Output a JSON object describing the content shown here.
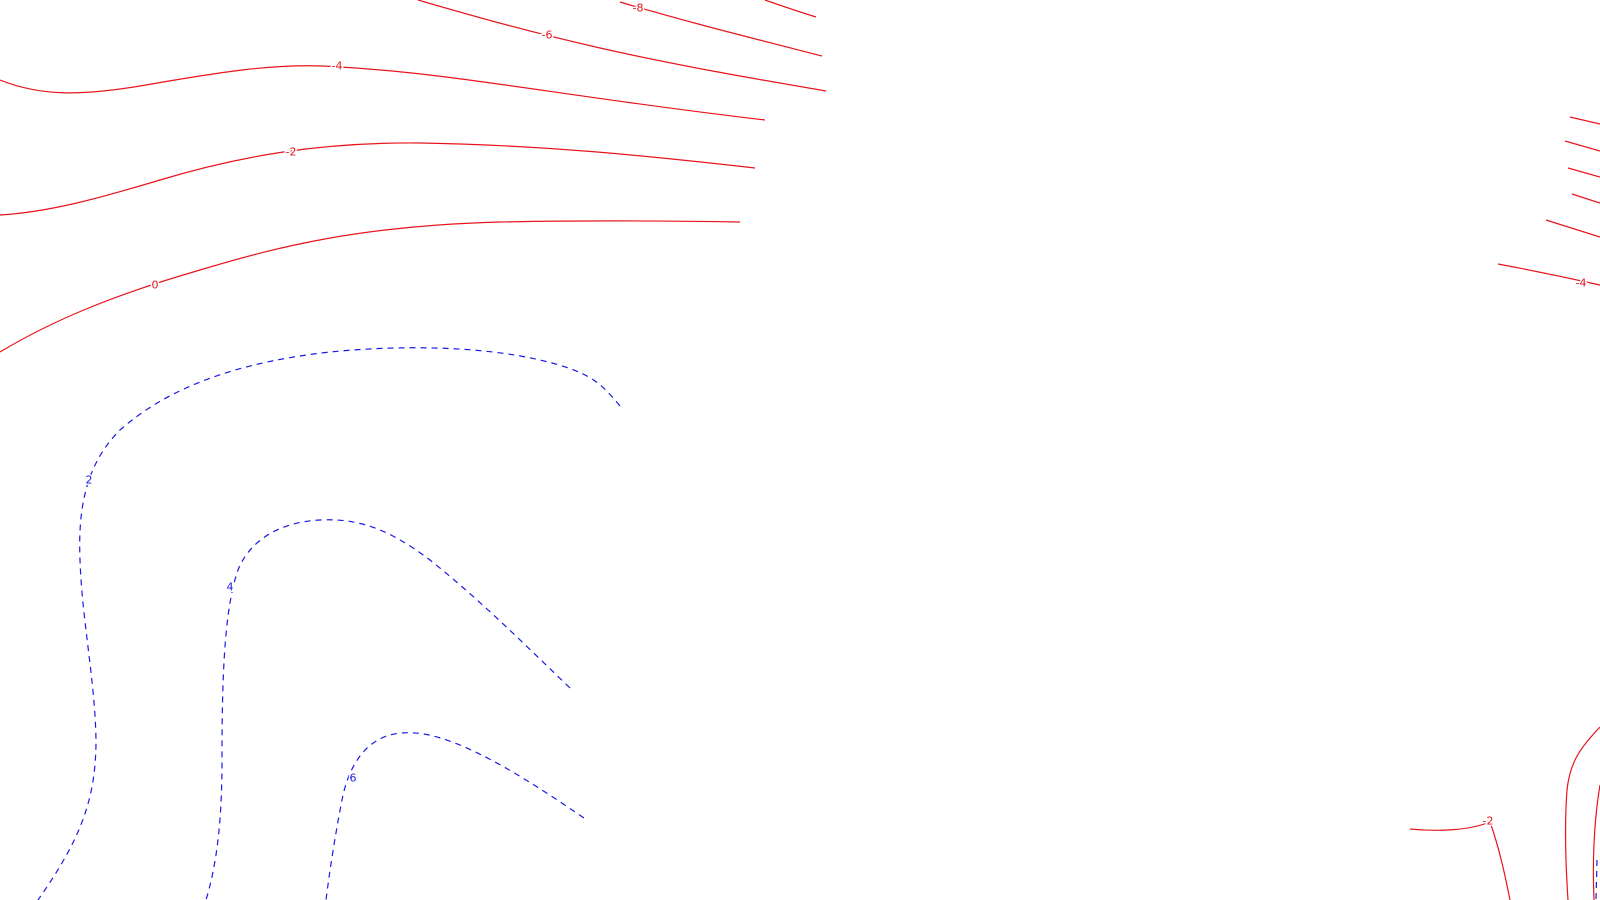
{
  "map": {
    "colors": {
      "negative": "#e8141c",
      "positive": "#1a1ae6",
      "background": "#ffffff"
    },
    "contours": [
      {
        "id": "c-neg8-a",
        "level": "-8",
        "sign": "negative",
        "label": "-8"
      },
      {
        "id": "c-neg8-b",
        "level": "-8",
        "sign": "negative",
        "label": ""
      },
      {
        "id": "c-neg6",
        "level": "-6",
        "sign": "negative",
        "label": "-6"
      },
      {
        "id": "c-neg4",
        "level": "-4",
        "sign": "negative",
        "label": "-4"
      },
      {
        "id": "c-neg2",
        "level": "-2",
        "sign": "negative",
        "label": "-2"
      },
      {
        "id": "c-zero",
        "level": "0",
        "sign": "negative",
        "label": "0"
      },
      {
        "id": "c-pos2",
        "level": "2",
        "sign": "positive",
        "label": "2"
      },
      {
        "id": "c-pos4",
        "level": "4",
        "sign": "positive",
        "label": "4"
      },
      {
        "id": "c-pos6",
        "level": "6",
        "sign": "positive",
        "label": "6"
      },
      {
        "id": "r-neg4",
        "level": "-4",
        "sign": "negative",
        "label": "-4"
      },
      {
        "id": "r-neg2",
        "level": "-2",
        "sign": "negative",
        "label": "-2"
      }
    ]
  }
}
